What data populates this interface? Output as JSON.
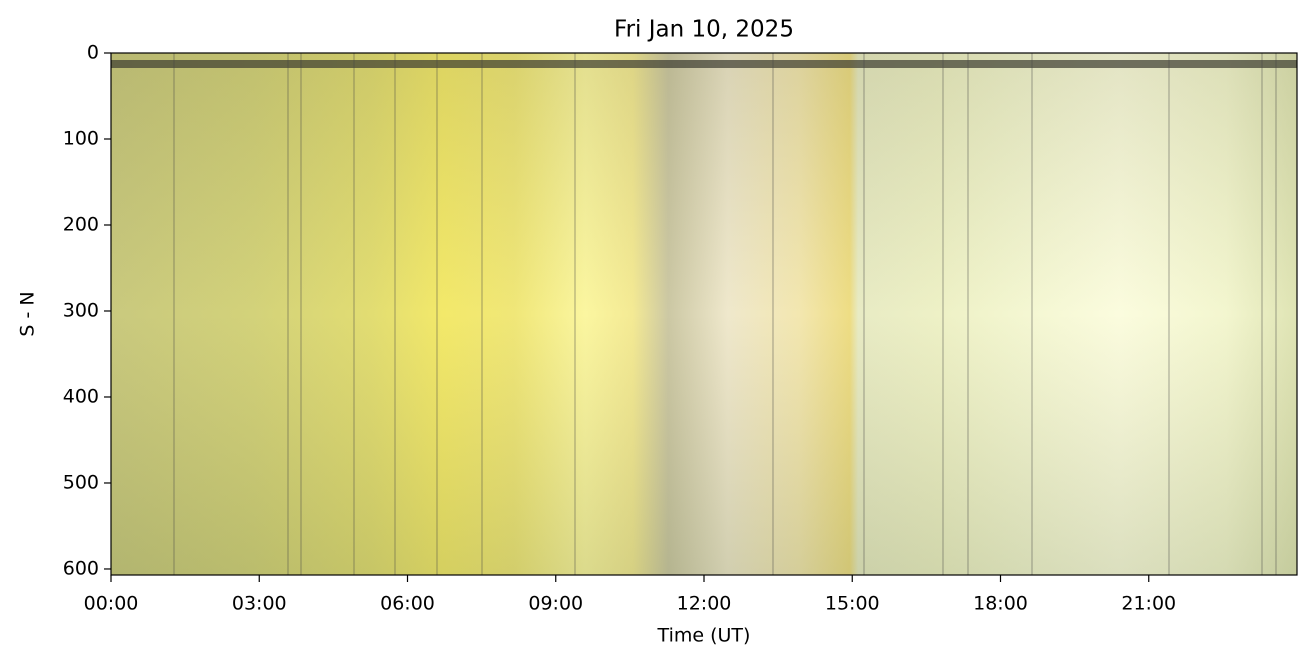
{
  "chart_data": {
    "type": "image",
    "title": "Fri Jan 10, 2025",
    "x_label": "Time (UT)",
    "y_label": "S - N",
    "xlim": [
      0,
      24
    ],
    "ylim": [
      607,
      0
    ],
    "xticks": [
      {
        "value": 0,
        "label": "00:00"
      },
      {
        "value": 3,
        "label": "03:00"
      },
      {
        "value": 6,
        "label": "06:00"
      },
      {
        "value": 9,
        "label": "09:00"
      },
      {
        "value": 12,
        "label": "12:00"
      },
      {
        "value": 15,
        "label": "15:00"
      },
      {
        "value": 18,
        "label": "18:00"
      },
      {
        "value": 21,
        "label": "21:00"
      }
    ],
    "yticks": [
      0,
      100,
      200,
      300,
      400,
      500,
      600
    ]
  }
}
